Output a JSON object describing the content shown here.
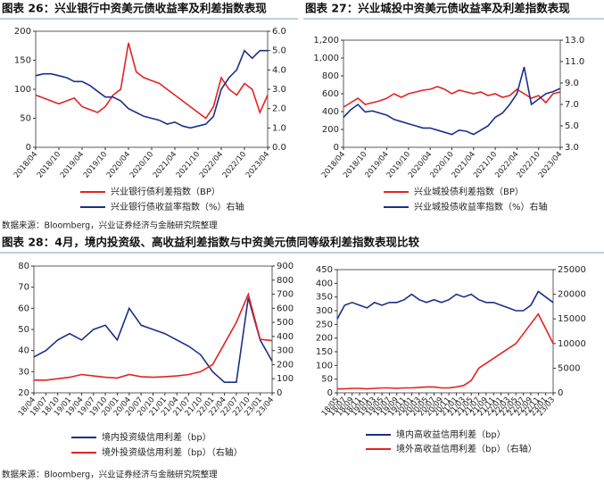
{
  "headers": {
    "fig26": "图表 26：兴业银行中资美元债收益率及利差指数表现",
    "fig27": "图表 27：兴业城投中资美元债收益率及利差指数表现",
    "fig28": "图表 28：4月，境内投资级、高收益利差指数与中资美元债同等级利差指数表现比较"
  },
  "sources": [
    "数据来源：Bloomberg，兴业证券经济与金融研究院整理",
    "数据来源：Bloomberg，兴业证券经济与金融研究院整理"
  ],
  "chart_data": [
    {
      "type": "line",
      "categories": [
        "2018/04",
        null,
        null,
        "2018/10",
        null,
        null,
        "2019/04",
        null,
        null,
        "2019/10",
        null,
        null,
        "2020/04",
        null,
        null,
        "2020/10",
        null,
        null,
        "2021/04",
        null,
        null,
        "2021/10",
        null,
        null,
        "2022/04",
        null,
        null,
        "2022/10",
        null,
        null,
        "2023/04"
      ],
      "ylim": [
        0,
        200
      ],
      "yticks": [
        0,
        50,
        100,
        150,
        200
      ],
      "y2lim": [
        0,
        6
      ],
      "y2ticks": [
        {
          "value": 0,
          "label": "0.0"
        },
        {
          "value": 1,
          "label": "1.0"
        },
        {
          "value": 2,
          "label": "2.0"
        },
        {
          "value": 3,
          "label": "3.0"
        },
        {
          "value": 4,
          "label": "4.0"
        },
        {
          "value": 5,
          "label": "5.0"
        },
        {
          "value": 6,
          "label": "6.0"
        }
      ],
      "series": [
        {
          "name": "兴业银行债利差指数（BP）",
          "color": "#e32322",
          "values": [
            90,
            85,
            80,
            75,
            80,
            85,
            70,
            65,
            60,
            70,
            90,
            100,
            180,
            130,
            120,
            115,
            110,
            100,
            90,
            80,
            70,
            60,
            50,
            70,
            120,
            100,
            90,
            110,
            100,
            60,
            90
          ]
        },
        {
          "name": "兴业银行债收益率指数（%）右轴",
          "color": "#1b2f8a",
          "axis": "y2",
          "values": [
            3.7,
            3.8,
            3.8,
            3.7,
            3.6,
            3.4,
            3.4,
            3.2,
            2.9,
            2.6,
            2.6,
            2.4,
            2.0,
            1.8,
            1.6,
            1.5,
            1.4,
            1.2,
            1.3,
            1.1,
            1.0,
            1.1,
            1.2,
            1.6,
            3.0,
            3.6,
            4.0,
            5.0,
            4.6,
            5.0,
            5.0
          ]
        }
      ]
    },
    {
      "type": "line",
      "categories": [
        "2018/04",
        null,
        null,
        "2018/10",
        null,
        null,
        "2019/04",
        null,
        null,
        "2019/10",
        null,
        null,
        "2020/04",
        null,
        null,
        "2020/10",
        null,
        null,
        "2021/04",
        null,
        null,
        "2021/10",
        null,
        null,
        "2022/04",
        null,
        null,
        "2022/10",
        null,
        null,
        "2023/04"
      ],
      "ylim": [
        0,
        1200
      ],
      "yticks": [
        0,
        200,
        400,
        600,
        800,
        {
          "value": 1000,
          "label": "1,000"
        },
        {
          "value": 1200,
          "label": "1,200"
        }
      ],
      "y2lim": [
        3,
        13
      ],
      "y2ticks": [
        {
          "value": 3,
          "label": "3.0"
        },
        {
          "value": 5,
          "label": "5.0"
        },
        {
          "value": 7,
          "label": "7.0"
        },
        {
          "value": 9,
          "label": "9.0"
        },
        {
          "value": 11,
          "label": "11.0"
        },
        {
          "value": 13,
          "label": "13.0"
        }
      ],
      "series": [
        {
          "name": "兴业城投债利差指数（BP）",
          "color": "#e32322",
          "values": [
            450,
            500,
            550,
            480,
            500,
            520,
            550,
            600,
            560,
            600,
            620,
            640,
            650,
            680,
            650,
            600,
            640,
            620,
            600,
            620,
            580,
            600,
            560,
            580,
            650,
            600,
            550,
            580,
            500,
            600,
            620
          ]
        },
        {
          "name": "兴业城投债收益率指数（%）右轴",
          "color": "#1b2f8a",
          "axis": "y2",
          "values": [
            5.8,
            6.5,
            7.0,
            6.3,
            6.4,
            6.2,
            6.0,
            5.6,
            5.4,
            5.2,
            5.0,
            4.8,
            4.8,
            4.6,
            4.4,
            4.2,
            4.6,
            4.5,
            4.2,
            4.6,
            5.0,
            5.8,
            6.2,
            7.0,
            8.0,
            10.5,
            7.0,
            7.5,
            8.0,
            8.2,
            8.5
          ]
        }
      ]
    },
    {
      "type": "line",
      "categories": [
        "18/04",
        "18/07",
        "18/10",
        "19/01",
        "19/04",
        "19/07",
        "19/10",
        "20/01",
        "20/04",
        "20/07",
        "20/10",
        "21/01",
        "21/04",
        "21/07",
        "21/10",
        "22/01",
        "22/04",
        "22/07",
        "22/10",
        "23/01",
        "23/04"
      ],
      "ylim": [
        20,
        80
      ],
      "yticks": [
        20,
        30,
        40,
        50,
        60,
        70,
        80
      ],
      "y2lim": [
        0,
        900
      ],
      "y2ticks": [
        0,
        100,
        200,
        300,
        400,
        500,
        600,
        700,
        800,
        900
      ],
      "series": [
        {
          "name": "境内投资级信用利差（bp）",
          "color": "#1b2f8a",
          "values": [
            37,
            40,
            45,
            48,
            45,
            50,
            52,
            45,
            60,
            52,
            50,
            48,
            45,
            42,
            38,
            30,
            25,
            25,
            65,
            45,
            35
          ]
        },
        {
          "name": "境外投资级信用利差（bp）（右轴）",
          "color": "#e32322",
          "axis": "y2",
          "values": [
            90,
            90,
            100,
            110,
            130,
            120,
            110,
            105,
            130,
            115,
            110,
            115,
            120,
            130,
            150,
            200,
            350,
            500,
            700,
            380,
            370
          ]
        }
      ]
    },
    {
      "type": "line",
      "categories": [
        "18/05",
        "18/07",
        "18/09",
        "18/11",
        "19/01",
        "19/03",
        "19/05",
        "19/07",
        "19/09",
        "19/11",
        "20/01",
        "20/03",
        "20/05",
        "20/07",
        "20/09",
        "20/11",
        "21/01",
        "21/03",
        "21/05",
        "21/07",
        "21/09",
        "21/11",
        "22/01",
        "22/03",
        "22/05",
        "22/07",
        "22/09",
        "22/11",
        "23/01",
        "23/03"
      ],
      "ylim": [
        0,
        450
      ],
      "yticks": [
        0,
        50,
        100,
        150,
        200,
        250,
        300,
        350,
        400,
        450
      ],
      "y2lim": [
        0,
        25000
      ],
      "y2ticks": [
        0,
        5000,
        10000,
        15000,
        20000,
        25000
      ],
      "series": [
        {
          "name": "境内高收益信用利差（bp）",
          "color": "#1b2f8a",
          "values": [
            270,
            320,
            330,
            320,
            310,
            330,
            320,
            330,
            330,
            340,
            360,
            340,
            330,
            340,
            330,
            340,
            360,
            350,
            360,
            340,
            330,
            330,
            320,
            310,
            300,
            300,
            320,
            370,
            350,
            330
          ]
        },
        {
          "name": "境外高收益信用利差（bp）（右轴）",
          "color": "#e32322",
          "axis": "y2",
          "values": [
            800,
            800,
            900,
            900,
            800,
            900,
            1000,
            1000,
            900,
            1000,
            1000,
            1100,
            1200,
            1200,
            1000,
            1000,
            1200,
            1500,
            2500,
            5000,
            6000,
            7000,
            8000,
            9000,
            10000,
            12000,
            14000,
            16000,
            13000,
            10000
          ]
        }
      ]
    }
  ]
}
